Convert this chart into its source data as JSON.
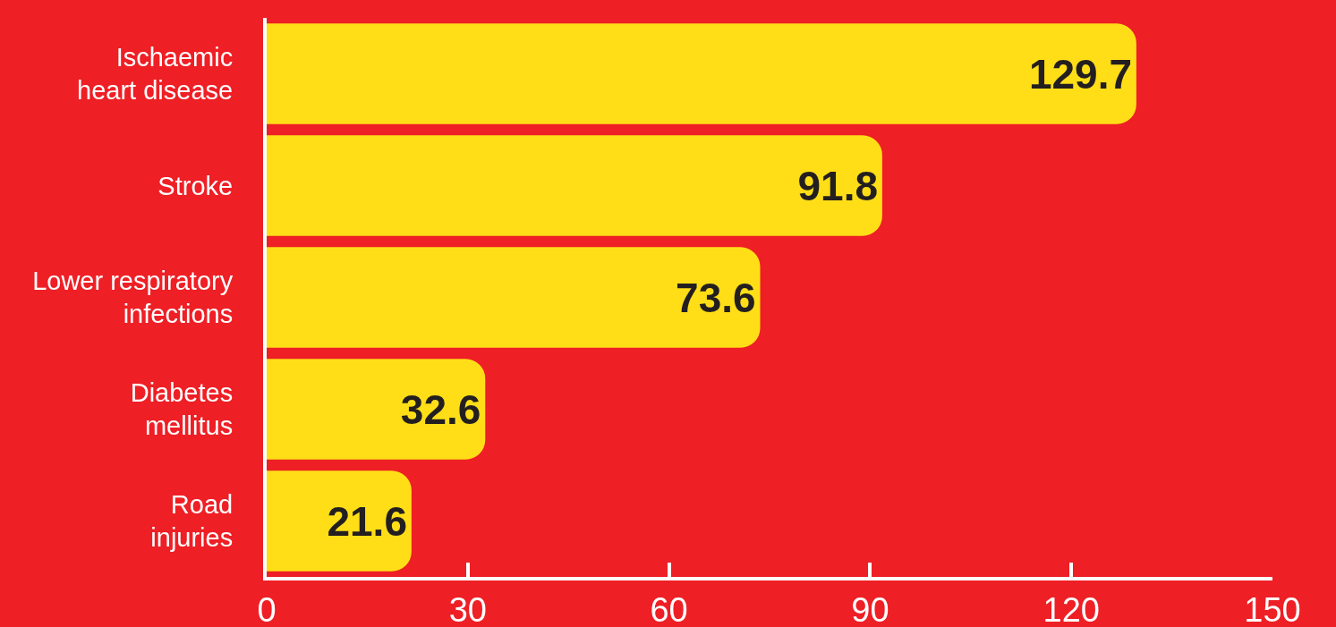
{
  "chart_data": {
    "type": "bar",
    "orientation": "horizontal",
    "categories": [
      "Ischaemic\nheart disease",
      "Stroke",
      "Lower respiratory\ninfections",
      "Diabetes\nmellitus",
      "Road\ninjuries"
    ],
    "values": [
      129.7,
      91.8,
      73.6,
      32.6,
      21.6
    ],
    "color": "#ffde17",
    "xlim": [
      0,
      150
    ],
    "xticks": [
      0,
      30,
      60,
      90,
      120,
      150
    ],
    "grid": false,
    "legend": false,
    "data_labels": true
  }
}
